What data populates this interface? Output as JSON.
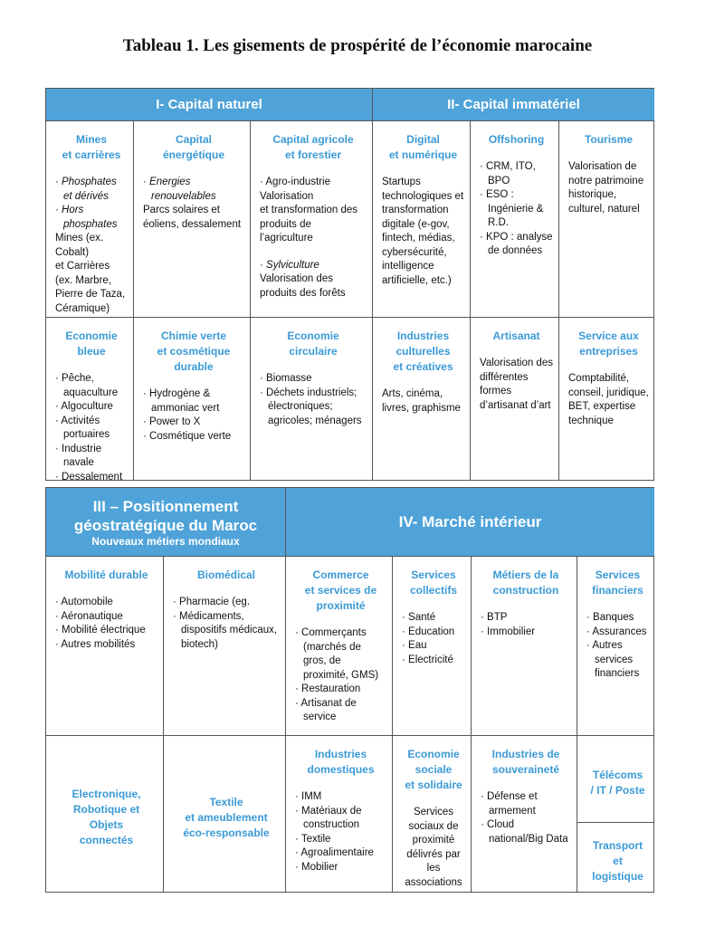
{
  "title": "Tableau 1. Les gisements de prospérité de l’économie marocaine",
  "colors": {
    "header_bg": "#4fa3d8",
    "title_blue": "#3b9ad6"
  },
  "table1": {
    "headers": [
      "I- Capital naturel",
      "II- Capital immatériel"
    ],
    "cells": [
      {
        "title": "Mines\net carrières",
        "items": [
          {
            "t": "Phosphates et dérivés",
            "b": 1,
            "i": 1
          },
          {
            "t": "Hors phosphates",
            "b": 1,
            "i": 1
          },
          {
            "t": "Mines (ex. Cobalt)\net Carrières (ex. Marbre, Pierre de Taza, Céramique)"
          }
        ]
      },
      {
        "title": "Capital\nénergétique",
        "items": [
          {
            "t": "Energies renouvelables",
            "b": 1,
            "i": 1
          },
          {
            "t": "Parcs solaires et éoliens, dessalement"
          }
        ]
      },
      {
        "title": "Capital agricole\net forestier",
        "items": [
          {
            "t": "Agro-industrie",
            "b": 1
          },
          {
            "t": "Valorisation\net transformation des produits de l’agriculture"
          },
          {
            "gap": 1
          },
          {
            "t": "Sylviculture",
            "b": 1,
            "i": 1
          },
          {
            "t": "Valorisation des produits des forêts"
          }
        ]
      },
      {
        "title": "Digital\net numérique",
        "items": [
          {
            "t": "Startups technologiques et transformation digitale (e-gov, fintech, médias, cybersécurité, intelligence artificielle, etc.)"
          }
        ]
      },
      {
        "title": "Offshoring",
        "items": [
          {
            "t": "CRM, ITO, BPO",
            "b": 1
          },
          {
            "t": "ESO : Ingénierie & R.D.",
            "b": 1
          },
          {
            "t": "KPO : analyse de données",
            "b": 1
          }
        ]
      },
      {
        "title": "Tourisme",
        "items": [
          {
            "t": "Valorisation de notre patrimoine historique, culturel, naturel"
          }
        ]
      },
      {
        "title": "Economie bleue",
        "items": [
          {
            "t": "Pêche, aquaculture",
            "b": 1
          },
          {
            "t": "Algoculture",
            "b": 1
          },
          {
            "t": "Activités portuaires",
            "b": 1
          },
          {
            "t": "Industrie navale",
            "b": 1
          },
          {
            "t": "Dessalement",
            "b": 1
          }
        ]
      },
      {
        "title": "Chimie verte\net cosmétique\ndurable",
        "items": [
          {
            "t": "Hydrogène & ammoniac vert",
            "b": 1
          },
          {
            "t": "Power to X",
            "b": 1
          },
          {
            "t": "Cosmétique verte",
            "b": 1
          }
        ]
      },
      {
        "title": "Economie\ncirculaire",
        "items": [
          {
            "t": "Biomasse",
            "b": 1
          },
          {
            "t": "Déchets industriels; électroniques; agricoles; ménagers",
            "b": 1
          }
        ]
      },
      {
        "title": "Industries\nculturelles\net créatives",
        "items": [
          {
            "t": "Arts, cinéma, livres, graphisme"
          }
        ]
      },
      {
        "title": "Artisanat",
        "items": [
          {
            "t": "Valorisation des différentes formes d’artisanat d’art"
          }
        ]
      },
      {
        "title": "Service aux\nentreprises",
        "items": [
          {
            "t": "Comptabilité, conseil, juridique, BET, expertise technique"
          }
        ]
      }
    ]
  },
  "table2": {
    "header_left": "III – Positionnement\ngéostratégique du Maroc",
    "header_left_sub": "Nouveaux métiers mondiaux",
    "header_right": "IV- Marché intérieur",
    "cells": [
      {
        "title": "Mobilité durable",
        "items": [
          {
            "t": "Automobile",
            "b": 1
          },
          {
            "t": "Aéronautique",
            "b": 1
          },
          {
            "t": "Mobilité électrique",
            "b": 1
          },
          {
            "t": "Autres mobilités",
            "b": 1
          }
        ]
      },
      {
        "title": "Biomédical",
        "items": [
          {
            "t": "Pharmacie (eg.",
            "b": 1
          },
          {
            "t": "Médicaments, dispositifs médicaux, biotech)",
            "b": 1
          }
        ]
      },
      {
        "title": "Commerce\net services de\nproximité",
        "items": [
          {
            "t": "Commerçants (marchés de gros, de proximité, GMS)",
            "b": 1
          },
          {
            "t": "Restauration",
            "b": 1
          },
          {
            "t": "Artisanat de service",
            "b": 1
          }
        ]
      },
      {
        "title": "Services\ncollectifs",
        "items": [
          {
            "t": "Santé",
            "b": 1
          },
          {
            "t": "Education",
            "b": 1
          },
          {
            "t": "Eau",
            "b": 1
          },
          {
            "t": "Electricité",
            "b": 1
          }
        ]
      },
      {
        "title": "Métiers de la\nconstruction",
        "items": [
          {
            "t": "BTP",
            "b": 1
          },
          {
            "t": "Immobilier",
            "b": 1
          }
        ]
      },
      {
        "title": "Services\nfinanciers",
        "items": [
          {
            "t": "Banques",
            "b": 1
          },
          {
            "t": "Assurances",
            "b": 1
          },
          {
            "t": "Autres services financiers",
            "b": 1
          }
        ]
      },
      {
        "title": "Electronique,\nRobotique et Objets\nconnectés",
        "items": []
      },
      {
        "title": "Textile\net ameublement\néco-responsable",
        "items": []
      },
      {
        "title": "Industries\ndomestiques",
        "items": [
          {
            "t": "IMM",
            "b": 1
          },
          {
            "t": "Matériaux de construction",
            "b": 1
          },
          {
            "t": "Textile",
            "b": 1
          },
          {
            "t": "Agroalimentaire",
            "b": 1
          },
          {
            "t": "Mobilier",
            "b": 1
          }
        ]
      },
      {
        "title": "Economie\nsociale\net solidaire",
        "items": [
          {
            "t": "Services sociaux de proximité délivrés par les associations",
            "c": 1
          }
        ]
      },
      {
        "title": "Industries de\nsouveraineté",
        "items": [
          {
            "t": "Défense et armement",
            "b": 1
          },
          {
            "t": "Cloud national/Big Data",
            "b": 1
          }
        ]
      },
      {
        "title": "Télécoms\n/ IT / Poste",
        "items": []
      },
      {
        "title": "Transport\net logistique",
        "items": []
      }
    ]
  }
}
